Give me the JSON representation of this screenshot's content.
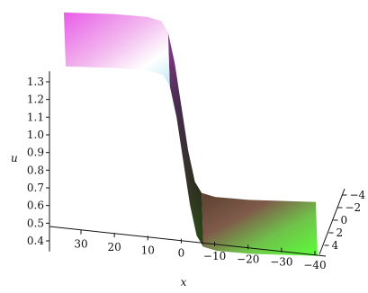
{
  "chart_data": {
    "type": "surface3d",
    "title": "",
    "xlabel": "x",
    "ylabel": "",
    "zlabel": "u",
    "x_ticks": [
      "30",
      "20",
      "10",
      "0",
      "-10",
      "-20",
      "-30",
      "-40"
    ],
    "y_ticks": [
      "-4",
      "-2",
      "0",
      "2",
      "4"
    ],
    "z_ticks": [
      "1.3",
      "1.2",
      "1.1",
      "1.0",
      "0.9",
      "0.8",
      "0.7",
      "0.6",
      "0.5",
      "0.4"
    ],
    "xlim": [
      35,
      -40
    ],
    "ylim": [
      -5,
      5
    ],
    "zlim": [
      0.34,
      1.38
    ],
    "surface": {
      "description_of_shape": "kink / step profile along x",
      "u_high": 1.36,
      "u_low": 0.36,
      "x_center": 0,
      "x_samples": [
        35,
        20,
        10,
        6,
        4,
        2,
        0,
        -2,
        -4,
        -6,
        -10,
        -20,
        -40
      ],
      "u_samples": [
        1.36,
        1.36,
        1.35,
        1.33,
        1.27,
        1.1,
        0.86,
        0.62,
        0.45,
        0.39,
        0.37,
        0.36,
        0.36
      ]
    },
    "grid": false,
    "colors": {
      "high_plateau": "#e05ae0",
      "mid_slope": "#5a3b5c",
      "low_plateau": "#66ff44",
      "highlight": "#ffffff"
    }
  }
}
